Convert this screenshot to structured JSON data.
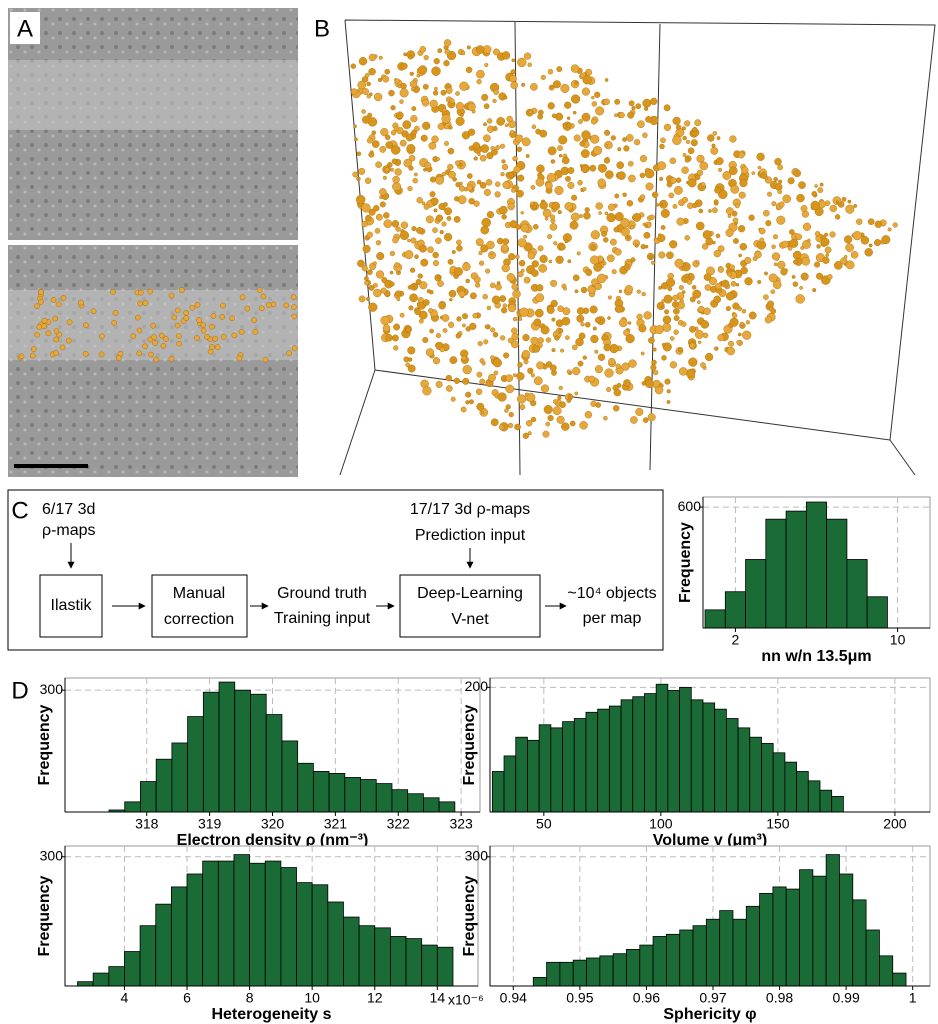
{
  "panels": {
    "a": "A",
    "b": "B",
    "c": "C",
    "d": "D"
  },
  "flowchart": {
    "input_left": [
      "6/17 3d",
      "ρ-maps"
    ],
    "ilastik": "Ilastik",
    "manual": [
      "Manual",
      "correction"
    ],
    "ground_truth": [
      "Ground truth",
      "Training input"
    ],
    "input_right": [
      "17/17 3d ρ-maps",
      "Prediction input"
    ],
    "vnet": [
      "Deep-Learning",
      "V-net"
    ],
    "output": [
      "~10⁴ objects",
      "per map"
    ]
  },
  "chart_data": [
    {
      "type": "histogram",
      "xlabel": "nn w/n 13.5μm",
      "ylabel": "Frequency",
      "color": "#1b6b36",
      "grid": true,
      "bins": [
        0.5,
        1.5,
        2.5,
        3.5,
        4.5,
        5.5,
        6.5,
        7.5,
        8.5,
        9.5
      ],
      "values": [
        90,
        180,
        340,
        540,
        580,
        625,
        540,
        340,
        155
      ],
      "xlim": [
        0.4,
        11.6
      ],
      "xticks": [
        2,
        10
      ],
      "ylim": [
        0,
        650
      ],
      "yticks": [
        600
      ]
    },
    {
      "type": "histogram",
      "xlabel": "Electron density ρ (nm⁻³)",
      "ylabel": "Frequency",
      "color": "#1b6b36",
      "grid": true,
      "bins": [
        317.4,
        317.65,
        317.9,
        318.15,
        318.4,
        318.65,
        318.9,
        319.15,
        319.4,
        319.65,
        319.9,
        320.15,
        320.4,
        320.65,
        320.9,
        321.15,
        321.4,
        321.65,
        321.9,
        322.15,
        322.4,
        322.65,
        322.9
      ],
      "values": [
        5,
        25,
        75,
        130,
        170,
        235,
        295,
        320,
        300,
        290,
        240,
        175,
        120,
        100,
        95,
        85,
        80,
        70,
        55,
        45,
        35,
        25
      ],
      "xlim": [
        316.7,
        323.3
      ],
      "xticks": [
        318,
        319,
        320,
        321,
        322,
        323
      ],
      "ylim": [
        0,
        330
      ],
      "yticks": [
        300
      ]
    },
    {
      "type": "histogram",
      "xlabel": "Volume v (μm³)",
      "ylabel": "Frequency",
      "color": "#1b6b36",
      "grid": true,
      "bins": [
        28,
        33,
        38,
        43,
        48,
        53,
        58,
        63,
        68,
        73,
        78,
        83,
        88,
        93,
        98,
        103,
        108,
        113,
        118,
        123,
        128,
        133,
        138,
        143,
        148,
        153,
        158,
        163,
        168,
        173,
        178
      ],
      "values": [
        65,
        90,
        120,
        115,
        140,
        135,
        145,
        150,
        160,
        165,
        170,
        180,
        185,
        190,
        205,
        195,
        200,
        180,
        175,
        165,
        150,
        135,
        120,
        110,
        95,
        80,
        65,
        50,
        35,
        25
      ],
      "xlim": [
        27,
        215
      ],
      "xticks": [
        50,
        100,
        150,
        200
      ],
      "ylim": [
        0,
        215
      ],
      "yticks": [
        200
      ]
    },
    {
      "type": "histogram",
      "xlabel": "Heterogeneity s",
      "ylabel": "Frequency",
      "annotation": "x10⁻⁶",
      "color": "#1b6b36",
      "grid": true,
      "bins": [
        2.5,
        3,
        3.5,
        4,
        4.5,
        5,
        5.5,
        6,
        6.5,
        7,
        7.5,
        8,
        8.5,
        9,
        9.5,
        10,
        10.5,
        11,
        11.5,
        12,
        12.5,
        13,
        13.5,
        14,
        14.5
      ],
      "values": [
        10,
        30,
        45,
        80,
        140,
        190,
        230,
        260,
        290,
        290,
        305,
        285,
        290,
        275,
        240,
        235,
        195,
        160,
        140,
        135,
        115,
        110,
        95,
        90
      ],
      "xlim": [
        2.1,
        15.3
      ],
      "xticks": [
        4,
        6,
        8,
        10,
        12,
        14
      ],
      "ylim": [
        0,
        325
      ],
      "yticks": [
        300
      ]
    },
    {
      "type": "histogram",
      "xlabel": "Sphericity φ",
      "ylabel": "Frequency",
      "color": "#1b6b36",
      "grid": true,
      "bins": [
        0.943,
        0.945,
        0.947,
        0.949,
        0.951,
        0.953,
        0.955,
        0.957,
        0.959,
        0.961,
        0.963,
        0.965,
        0.967,
        0.969,
        0.971,
        0.973,
        0.975,
        0.977,
        0.979,
        0.981,
        0.983,
        0.985,
        0.987,
        0.989,
        0.991,
        0.993,
        0.995,
        0.997,
        0.999
      ],
      "values": [
        20,
        55,
        55,
        60,
        65,
        70,
        75,
        85,
        95,
        115,
        120,
        130,
        140,
        155,
        175,
        155,
        185,
        215,
        230,
        225,
        270,
        255,
        305,
        260,
        200,
        130,
        70,
        30
      ],
      "xlim": [
        0.9365,
        1.0026
      ],
      "xticks": [
        0.94,
        0.95,
        0.96,
        0.97,
        0.98,
        0.99,
        1
      ],
      "ylim": [
        0,
        325
      ],
      "yticks": [
        300
      ]
    }
  ]
}
